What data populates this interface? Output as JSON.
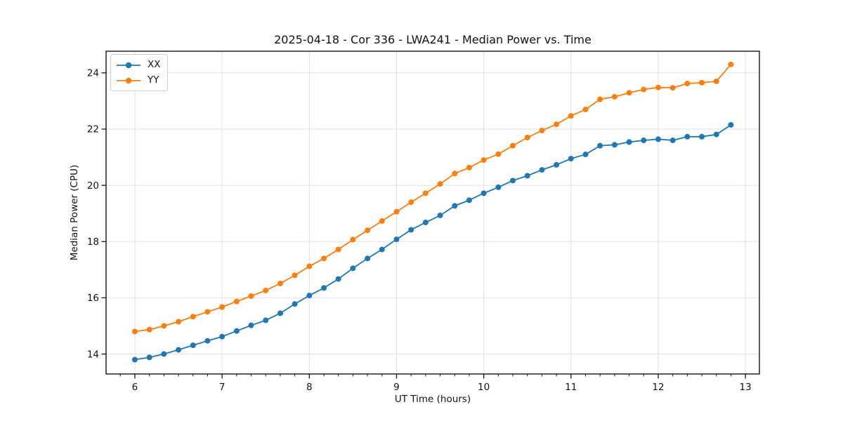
{
  "figure": {
    "background": "#ffffff"
  },
  "chart_data": {
    "type": "line",
    "title": "2025-04-18 - Cor 336 - LWA241 - Median Power vs. Time",
    "xlabel": "UT Time (hours)",
    "ylabel": "Median Power (CPU)",
    "xlim": [
      5.67,
      13.16
    ],
    "ylim": [
      13.29,
      24.77
    ],
    "xticks": [
      6,
      7,
      8,
      9,
      10,
      11,
      12,
      13
    ],
    "yticks": [
      14,
      16,
      18,
      20,
      22,
      24
    ],
    "x_minor_tick_step_hours": 0.1667,
    "grid": true,
    "grid_color": "#e0e0e0",
    "spine_color": "#000000",
    "legend_position": "upper left",
    "x": [
      6.0,
      6.167,
      6.333,
      6.5,
      6.667,
      6.833,
      7.0,
      7.167,
      7.333,
      7.5,
      7.667,
      7.833,
      8.0,
      8.167,
      8.333,
      8.5,
      8.667,
      8.833,
      9.0,
      9.167,
      9.333,
      9.5,
      9.667,
      9.833,
      10.0,
      10.167,
      10.333,
      10.5,
      10.667,
      10.833,
      11.0,
      11.167,
      11.333,
      11.5,
      11.667,
      11.833,
      12.0,
      12.167,
      12.333,
      12.5,
      12.667,
      12.833
    ],
    "series": [
      {
        "name": "XX",
        "color": "#1f77b4",
        "values": [
          13.8,
          13.88,
          14.0,
          14.15,
          14.31,
          14.47,
          14.62,
          14.82,
          15.02,
          15.2,
          15.45,
          15.78,
          16.08,
          16.35,
          16.67,
          17.05,
          17.4,
          17.72,
          18.08,
          18.42,
          18.68,
          18.93,
          19.27,
          19.47,
          19.72,
          19.93,
          20.17,
          20.34,
          20.55,
          20.73,
          20.95,
          21.1,
          21.41,
          21.44,
          21.54,
          21.6,
          21.64,
          21.6,
          21.73,
          21.73,
          21.81,
          22.15
        ]
      },
      {
        "name": "YY",
        "color": "#ff7f0e",
        "values": [
          14.8,
          14.87,
          15.0,
          15.15,
          15.33,
          15.5,
          15.67,
          15.87,
          16.06,
          16.26,
          16.51,
          16.8,
          17.12,
          17.4,
          17.72,
          18.07,
          18.4,
          18.73,
          19.06,
          19.4,
          19.72,
          20.05,
          20.42,
          20.63,
          20.9,
          21.11,
          21.41,
          21.7,
          21.95,
          22.17,
          22.47,
          22.7,
          23.06,
          23.15,
          23.29,
          23.41,
          23.48,
          23.47,
          23.62,
          23.65,
          23.7,
          24.3
        ]
      }
    ]
  }
}
